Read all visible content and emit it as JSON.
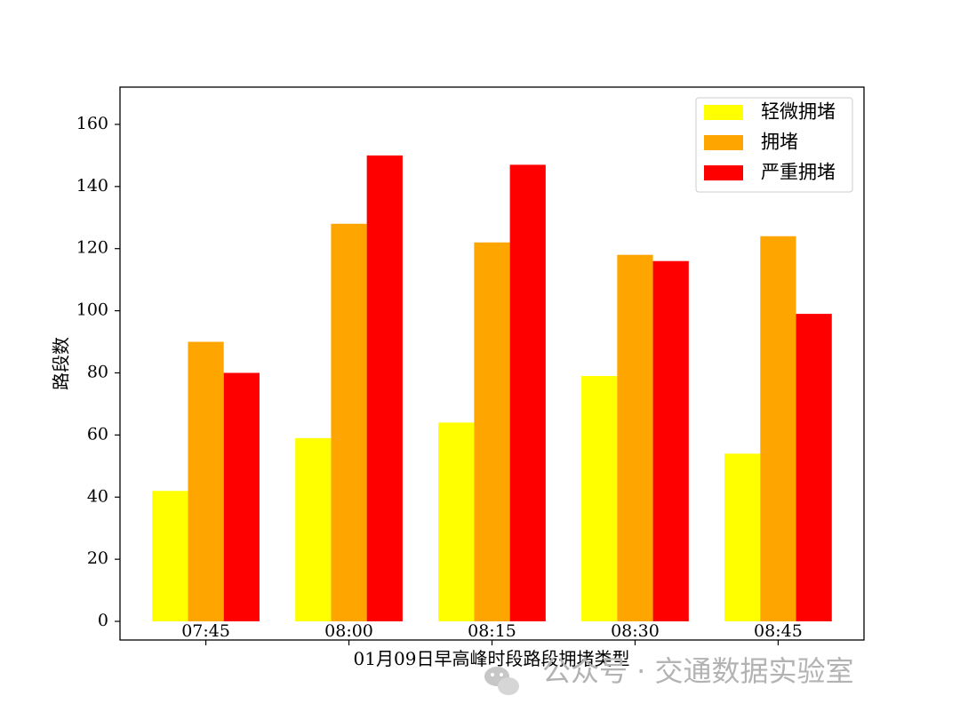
{
  "chart_data": {
    "type": "bar",
    "title": "",
    "xlabel": "01月09日早高峰时段路段拥堵类型",
    "ylabel": "路段数",
    "categories": [
      "07:45",
      "08:00",
      "08:15",
      "08:30",
      "08:45"
    ],
    "series": [
      {
        "name": "轻微拥堵",
        "color": "#ffff00",
        "values": [
          42,
          59,
          64,
          79,
          54
        ]
      },
      {
        "name": "拥堵",
        "color": "#ffa500",
        "values": [
          90,
          128,
          122,
          118,
          124
        ]
      },
      {
        "name": "严重拥堵",
        "color": "#ff0000",
        "values": [
          80,
          150,
          147,
          116,
          99
        ]
      }
    ],
    "ylim": [
      -6,
      172
    ],
    "yticks": [
      0,
      20,
      40,
      60,
      80,
      100,
      120,
      140,
      160
    ],
    "grid": false,
    "legend_position": "top-right"
  },
  "watermark": {
    "text": "公众号 · 交通数据实验室",
    "icon": "wechat-icon"
  }
}
